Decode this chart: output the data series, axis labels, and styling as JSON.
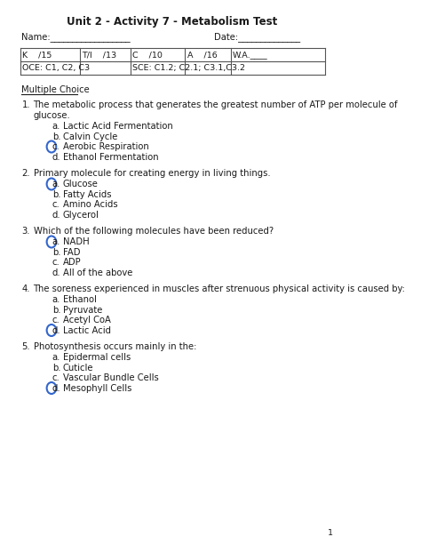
{
  "title": "Unit 2 - Activity 7 - Metabolism Test",
  "name_label": "Name:__________________",
  "date_label": "Date:______________",
  "table_row1": [
    "K    /15",
    "T/I    /13",
    "C    /10",
    "A    /16",
    "W.A.____"
  ],
  "table_row2_left": "OCE: C1, C2, C3",
  "table_row2_right": "SCE: C1.2; C2.1; C3.1,C3.2",
  "section": "Multiple Choice",
  "questions": [
    {
      "number": "1.",
      "text_line1": "The metabolic process that generates the greatest number of ATP per molecule of",
      "text_line2": "glucose.",
      "choices": [
        {
          "letter": "a.",
          "text": "Lactic Acid Fermentation",
          "circled": false
        },
        {
          "letter": "b.",
          "text": "Calvin Cycle",
          "circled": false
        },
        {
          "letter": "c.",
          "text": "Aerobic Respiration",
          "circled": true
        },
        {
          "letter": "d.",
          "text": "Ethanol Fermentation",
          "circled": false
        }
      ]
    },
    {
      "number": "2.",
      "text_line1": "Primary molecule for creating energy in living things.",
      "text_line2": null,
      "choices": [
        {
          "letter": "a.",
          "text": "Glucose",
          "circled": true
        },
        {
          "letter": "b.",
          "text": "Fatty Acids",
          "circled": false
        },
        {
          "letter": "c.",
          "text": "Amino Acids",
          "circled": false
        },
        {
          "letter": "d.",
          "text": "Glycerol",
          "circled": false
        }
      ]
    },
    {
      "number": "3.",
      "text_line1": "Which of the following molecules have been reduced?",
      "text_line2": null,
      "choices": [
        {
          "letter": "a.",
          "text": "NADH",
          "circled": true
        },
        {
          "letter": "b.",
          "text": "FAD",
          "circled": false
        },
        {
          "letter": "c.",
          "text": "ADP",
          "circled": false
        },
        {
          "letter": "d.",
          "text": "All of the above",
          "circled": false
        }
      ]
    },
    {
      "number": "4.",
      "text_line1": "The soreness experienced in muscles after strenuous physical activity is caused by:",
      "text_line2": null,
      "choices": [
        {
          "letter": "a.",
          "text": "Ethanol",
          "circled": false
        },
        {
          "letter": "b.",
          "text": "Pyruvate",
          "circled": false
        },
        {
          "letter": "c.",
          "text": "Acetyl CoA",
          "circled": false
        },
        {
          "letter": "d.",
          "text": "Lactic Acid",
          "circled": true
        }
      ]
    },
    {
      "number": "5.",
      "text_line1": "Photosynthesis occurs mainly in the:",
      "text_line2": null,
      "choices": [
        {
          "letter": "a.",
          "text": "Epidermal cells",
          "circled": false
        },
        {
          "letter": "b.",
          "text": "Cuticle",
          "circled": false
        },
        {
          "letter": "c.",
          "text": "Vascular Bundle Cells",
          "circled": false
        },
        {
          "letter": "d.",
          "text": "Mesophyll Cells",
          "circled": true
        }
      ]
    }
  ],
  "page_number": "1",
  "bg_color": "#ffffff",
  "text_color": "#1a1a1a",
  "circle_color": "#3366cc",
  "font_size_title": 8.5,
  "font_size_body": 7.2,
  "font_size_small": 6.8
}
